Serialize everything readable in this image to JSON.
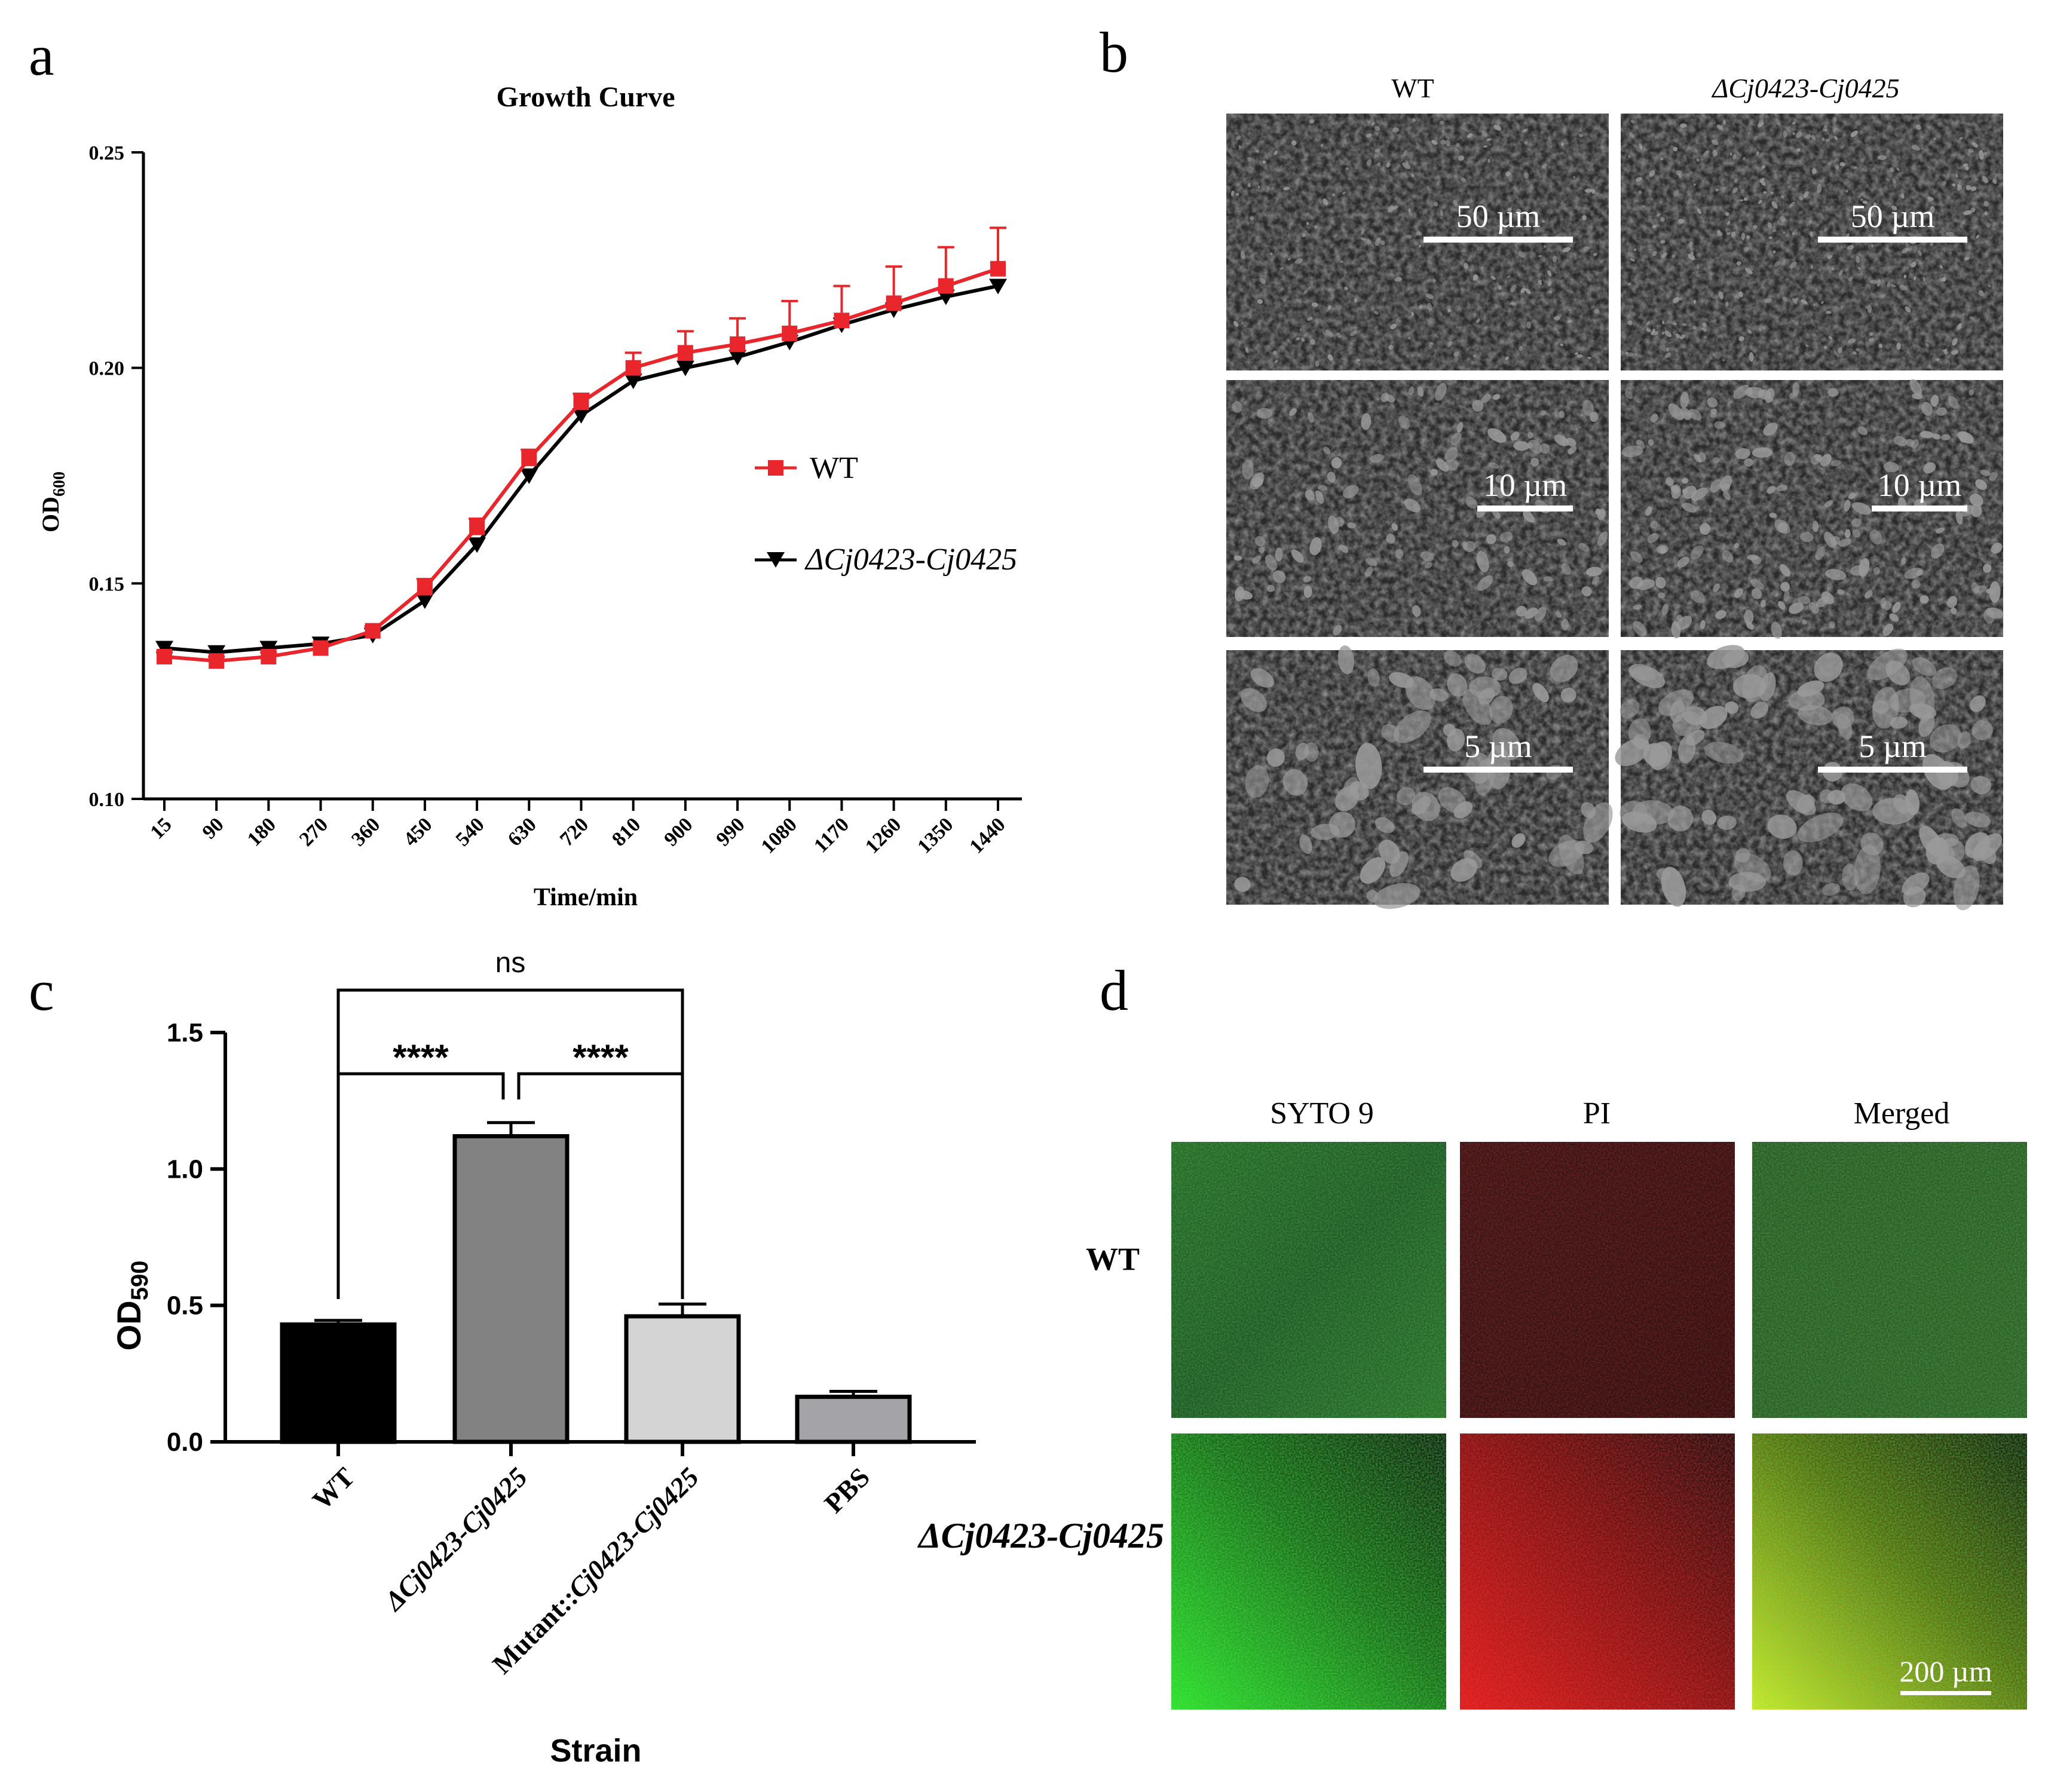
{
  "panel_letters": {
    "a": "a",
    "b": "b",
    "c": "c",
    "d": "d"
  },
  "colors": {
    "wt": "#e8262b",
    "mutant": "#000000",
    "bar_wt": "#000000",
    "bar_mutant": "#828282",
    "bar_comp": "#d4d4d4",
    "bar_pbs": "#a4a4a8"
  },
  "chart_data": [
    {
      "id": "growth-curve",
      "type": "line",
      "title": "Growth Curve",
      "xlabel": "Time/min",
      "ylabel_main": "OD",
      "ylabel_sub": "600",
      "categories": [
        "15",
        "90",
        "180",
        "270",
        "360",
        "450",
        "540",
        "630",
        "720",
        "810",
        "900",
        "990",
        "1080",
        "1170",
        "1260",
        "1350",
        "1440"
      ],
      "yticks": [
        "0.10",
        "0.15",
        "0.20",
        "0.25"
      ],
      "ylim": [
        0.1,
        0.25
      ],
      "legend_position": "right",
      "series": [
        {
          "name": "WT",
          "marker": "square",
          "color": "#e8262b",
          "values": [
            0.133,
            0.132,
            0.133,
            0.135,
            0.139,
            0.149,
            0.163,
            0.179,
            0.192,
            0.2,
            0.2035,
            0.2055,
            0.208,
            0.211,
            0.215,
            0.219,
            0.223
          ],
          "errors": [
            0.001,
            0.001,
            0.001,
            0.001,
            0.001,
            0.002,
            0.002,
            0.002,
            0.002,
            0.0035,
            0.005,
            0.006,
            0.0075,
            0.008,
            0.0085,
            0.009,
            0.0095
          ]
        },
        {
          "name": "ΔCj0423-Cj0425",
          "marker": "triangle-down",
          "color": "#000000",
          "values": [
            0.135,
            0.134,
            0.135,
            0.136,
            0.138,
            0.146,
            0.159,
            0.175,
            0.189,
            0.197,
            0.2,
            0.2025,
            0.206,
            0.21,
            0.2135,
            0.2165,
            0.219
          ],
          "errors": [
            0,
            0,
            0,
            0,
            0,
            0,
            0,
            0,
            0,
            0,
            0,
            0,
            0,
            0,
            0,
            0,
            0
          ]
        }
      ]
    },
    {
      "id": "od590-bar",
      "type": "bar",
      "xlabel": "Strain",
      "ylabel_main": "OD",
      "ylabel_sub": "590",
      "yticks": [
        "0.0",
        "0.5",
        "1.0",
        "1.5"
      ],
      "ylim": [
        0.0,
        1.5
      ],
      "categories": [
        "WT",
        "ΔCj0423-Cj0425",
        "Mutant::Cj0423-Cj0425",
        "PBS"
      ],
      "values": [
        0.43,
        1.12,
        0.46,
        0.165
      ],
      "errors": [
        0.015,
        0.05,
        0.045,
        0.02
      ],
      "significance": [
        {
          "from": 0,
          "to": 2,
          "label": "ns"
        },
        {
          "from": 0,
          "to": 1,
          "label": "****"
        },
        {
          "from": 1,
          "to": 2,
          "label": "****"
        }
      ]
    }
  ],
  "sem_panel": {
    "column_labels": [
      "WT",
      "ΔCj0423-Cj0425"
    ],
    "scale_bars": [
      [
        "50 µm",
        "50 µm"
      ],
      [
        "10 µm",
        "10 µm"
      ],
      [
        "5 µm",
        "5 µm"
      ]
    ]
  },
  "confocal_panel": {
    "column_labels": [
      "SYTO 9",
      "PI",
      "Merged"
    ],
    "row_labels": [
      "WT",
      "ΔCj0423-Cj0425"
    ],
    "scale_bar": "200 µm"
  }
}
